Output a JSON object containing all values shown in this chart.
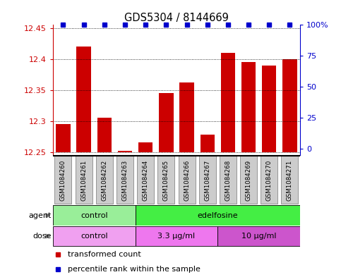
{
  "title": "GDS5304 / 8144669",
  "samples": [
    "GSM1084260",
    "GSM1084261",
    "GSM1084262",
    "GSM1084263",
    "GSM1084264",
    "GSM1084265",
    "GSM1084266",
    "GSM1084267",
    "GSM1084268",
    "GSM1084269",
    "GSM1084270",
    "GSM1084271"
  ],
  "bar_values": [
    12.295,
    12.42,
    12.305,
    12.252,
    12.265,
    12.345,
    12.362,
    12.278,
    12.41,
    12.395,
    12.39,
    12.4
  ],
  "bar_color": "#cc0000",
  "percentile_color": "#0000cc",
  "bar_bottom": 12.25,
  "ylim_left": [
    12.245,
    12.455
  ],
  "ylim_right": [
    -5,
    100
  ],
  "yticks_left": [
    12.25,
    12.3,
    12.35,
    12.4,
    12.45
  ],
  "yticks_right": [
    0,
    25,
    50,
    75,
    100
  ],
  "ytick_labels_left": [
    "12.25",
    "12.3",
    "12.35",
    "12.4",
    "12.45"
  ],
  "ytick_labels_right": [
    "0",
    "25",
    "50",
    "75",
    "100%"
  ],
  "agent_groups": [
    {
      "label": "control",
      "start": 0,
      "end": 4,
      "color": "#99ee99"
    },
    {
      "label": "edelfosine",
      "start": 4,
      "end": 12,
      "color": "#44ee44"
    }
  ],
  "dose_groups": [
    {
      "label": "control",
      "start": 0,
      "end": 4,
      "color": "#f0a0f0"
    },
    {
      "label": "3.3 μg/ml",
      "start": 4,
      "end": 8,
      "color": "#ee77ee"
    },
    {
      "label": "10 μg/ml",
      "start": 8,
      "end": 12,
      "color": "#cc55cc"
    }
  ],
  "legend_items": [
    {
      "color": "#cc0000",
      "label": "transformed count"
    },
    {
      "color": "#0000cc",
      "label": "percentile rank within the sample"
    }
  ],
  "bar_width": 0.7,
  "left_label_color": "#cc0000",
  "right_label_color": "#0000cc",
  "sample_box_color": "#cccccc",
  "sample_box_edge": "#888888"
}
